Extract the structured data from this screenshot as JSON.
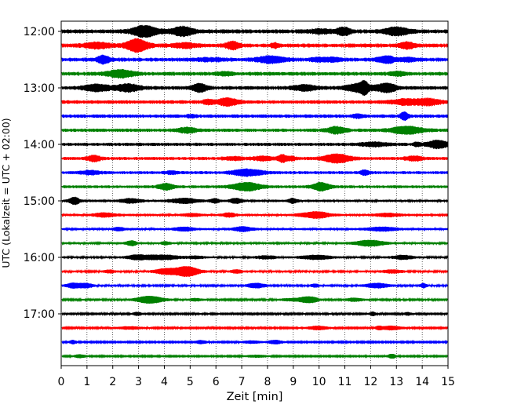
{
  "chart_data": {
    "type": "line",
    "xlabel": "Zeit  [min]",
    "ylabel": "UTC (Lokalzeit = UTC + 02:00)",
    "xlim": [
      0,
      15
    ],
    "x_ticks": [
      "0",
      "1",
      "2",
      "3",
      "4",
      "5",
      "6",
      "7",
      "8",
      "9",
      "10",
      "11",
      "12",
      "13",
      "14",
      "15"
    ],
    "y_ticks": [
      "12:00",
      "13:00",
      "14:00",
      "15:00",
      "16:00",
      "17:00"
    ],
    "grid": "vertical dotted lines at each minute",
    "trace_colors": [
      "#000000",
      "#ff0000",
      "#0000ff",
      "#008000"
    ],
    "traces": [
      {
        "start": "12:00",
        "color": "#000000"
      },
      {
        "start": "12:15",
        "color": "#ff0000"
      },
      {
        "start": "12:30",
        "color": "#0000ff"
      },
      {
        "start": "12:45",
        "color": "#008000"
      },
      {
        "start": "13:00",
        "color": "#000000"
      },
      {
        "start": "13:15",
        "color": "#ff0000"
      },
      {
        "start": "13:30",
        "color": "#0000ff"
      },
      {
        "start": "13:45",
        "color": "#008000"
      },
      {
        "start": "14:00",
        "color": "#000000"
      },
      {
        "start": "14:15",
        "color": "#ff0000"
      },
      {
        "start": "14:30",
        "color": "#0000ff"
      },
      {
        "start": "14:45",
        "color": "#008000"
      },
      {
        "start": "15:00",
        "color": "#000000"
      },
      {
        "start": "15:15",
        "color": "#ff0000"
      },
      {
        "start": "15:30",
        "color": "#0000ff"
      },
      {
        "start": "15:45",
        "color": "#008000"
      },
      {
        "start": "16:00",
        "color": "#000000"
      },
      {
        "start": "16:15",
        "color": "#ff0000"
      },
      {
        "start": "16:30",
        "color": "#0000ff"
      },
      {
        "start": "16:45",
        "color": "#008000"
      },
      {
        "start": "17:00",
        "color": "#000000"
      },
      {
        "start": "17:15",
        "color": "#ff0000"
      },
      {
        "start": "17:30",
        "color": "#0000ff"
      },
      {
        "start": "17:45",
        "color": "#008000"
      }
    ]
  }
}
